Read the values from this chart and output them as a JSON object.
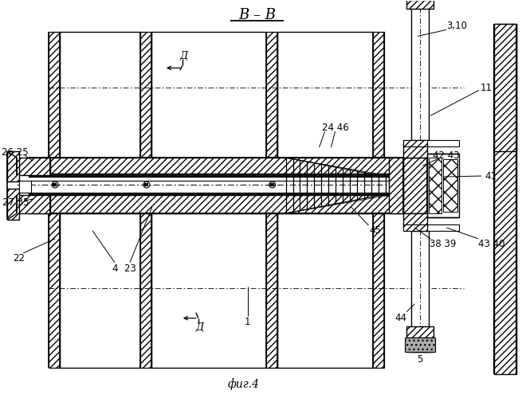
{
  "title": "В – В",
  "subtitle": "фиг.4",
  "bg": "#ffffff",
  "fig_w": 6.55,
  "fig_h": 5.0,
  "dpi": 100,
  "note_top": "Д",
  "note_bot": "Д",
  "labels": {
    "3_10": "3,10",
    "11": "11",
    "42_43": "42 43",
    "41": "41",
    "24_46": "24 46",
    "45": "45",
    "38_39": "38 39",
    "43_40": "43 40",
    "26_25": "26 25",
    "27_35": "27 35",
    "22": "22",
    "44": "44",
    "5": "5",
    "4_23": "4  23",
    "1": "1"
  }
}
